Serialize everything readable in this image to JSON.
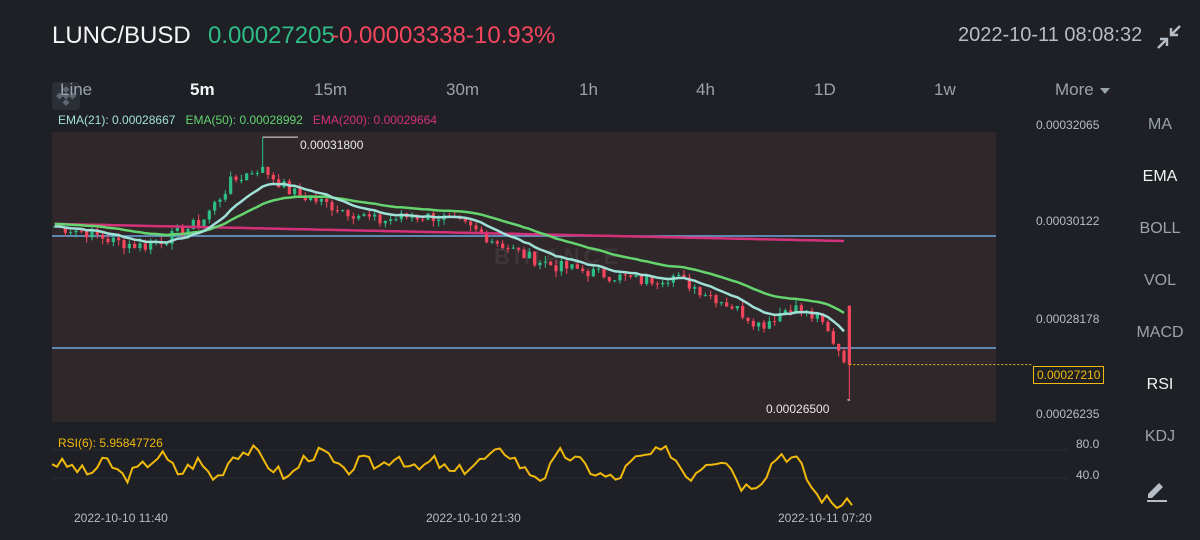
{
  "header": {
    "pair": "LUNC/BUSD",
    "last_price": "0.00027205",
    "change": "-0.00003338",
    "change_pct": "-10.93%",
    "datetime": "2022-10-11 08:08:32",
    "collapse_icon": "collapse-arrows-icon"
  },
  "tabs": [
    {
      "label": "Line",
      "active": false
    },
    {
      "label": "5m",
      "active": true
    },
    {
      "label": "15m",
      "active": false
    },
    {
      "label": "30m",
      "active": false
    },
    {
      "label": "1h",
      "active": false
    },
    {
      "label": "4h",
      "active": false
    },
    {
      "label": "1D",
      "active": false
    },
    {
      "label": "1w",
      "active": false
    },
    {
      "label": "More",
      "active": false
    }
  ],
  "legend": {
    "ema21": "EMA(21): 0.00028667",
    "ema50": "EMA(50): 0.00028992",
    "ema200": "EMA(200): 0.00029664"
  },
  "price_axis": [
    "0.00032065",
    "0.00030122",
    "0.00028178",
    "0.00026235"
  ],
  "current_price_label": "0.00027210",
  "annotations": {
    "high": "0.00031800",
    "low": "0.00026500"
  },
  "watermark": "BINANCE",
  "rsi": {
    "label": "RSI(6): 5.95847726",
    "ticks": [
      "80.0",
      "40.0"
    ]
  },
  "time_axis": [
    "2022-10-10 11:40",
    "2022-10-10 21:30",
    "2022-10-11 07:20"
  ],
  "indicators": [
    {
      "label": "MA",
      "active": false
    },
    {
      "label": "EMA",
      "active": true
    },
    {
      "label": "BOLL",
      "active": false
    },
    {
      "label": "VOL",
      "active": false
    },
    {
      "label": "MACD",
      "active": false
    },
    {
      "label": "RSI",
      "active": true
    },
    {
      "label": "KDJ",
      "active": false
    }
  ],
  "colors": {
    "up": "#2ebd85",
    "down": "#f6465d",
    "ema21": "#9fe0d7",
    "ema50": "#65d46e",
    "ema200": "#d3317a",
    "rsi": "#f0b90b",
    "price_line": "#f0b90b"
  },
  "chart_data": {
    "type": "candlestick",
    "interval": "5m",
    "y_axis_ticks": [
      0.00032065,
      0.00030122,
      0.00028178,
      0.00026235
    ],
    "close_path": [
      0.0003,
      0.000299,
      0.000297,
      0.000296,
      0.000298,
      0.000301,
      0.000309,
      0.000312,
      0.000307,
      0.000305,
      0.000303,
      0.000301,
      0.000302,
      0.000302,
      0.0003,
      0.000297,
      0.000294,
      0.000292,
      0.000291,
      0.00029,
      0.000289,
      0.00029,
      0.000287,
      0.000284,
      0.00028,
      0.000284,
      0.000281,
      0.000272
    ],
    "high": 0.000318,
    "low": 0.000265,
    "last": 0.0002721,
    "ema_last": {
      "ema21": 0.00028667,
      "ema50": 0.00028992,
      "ema200": 0.00029664
    },
    "rsi6_last": 5.95847726,
    "rsi_ticks": [
      80.0,
      40.0
    ],
    "rsi_path": [
      60,
      55,
      45,
      62,
      40,
      55,
      70,
      45,
      62,
      38,
      70,
      75,
      55,
      40,
      68,
      72,
      45,
      62,
      55,
      70,
      48,
      62,
      45,
      55,
      66,
      75,
      50,
      40,
      72,
      60,
      45,
      38,
      62,
      70,
      74,
      40,
      62,
      66,
      28,
      38,
      72,
      62,
      20,
      8,
      6
    ]
  }
}
